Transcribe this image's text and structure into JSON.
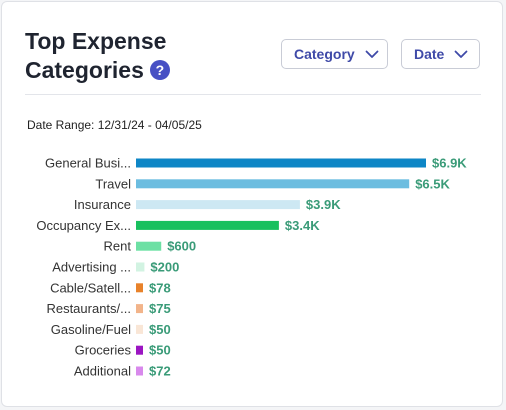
{
  "header": {
    "title_line1": "Top Expense",
    "title_line2": "Categories",
    "help_glyph": "?"
  },
  "filters": {
    "category_label": "Category",
    "date_label": "Date"
  },
  "date_range": "Date Range: 12/31/24 - 04/05/25",
  "colors": {
    "value_text": "#3a9b78",
    "accent": "#3f4aa8"
  },
  "chart_data": {
    "type": "bar",
    "orientation": "horizontal",
    "categories": [
      "General Busi...",
      "Travel",
      "Insurance",
      "Occupancy Ex...",
      "Rent",
      "Advertising ...",
      "Cable/Satell...",
      "Restaurants/...",
      "Gasoline/Fuel",
      "Groceries",
      "Additional"
    ],
    "values": [
      6900,
      6500,
      3900,
      3400,
      600,
      200,
      78,
      75,
      50,
      50,
      72
    ],
    "value_labels": [
      "$6.9K",
      "$6.5K",
      "$3.9K",
      "$3.4K",
      "$600",
      "$200",
      "$78",
      "$75",
      "$50",
      "$50",
      "$72"
    ],
    "colors": [
      "#0e86c6",
      "#6cbde0",
      "#cde8f3",
      "#18c05e",
      "#6de0a4",
      "#d2f3e2",
      "#e8822a",
      "#f2b48a",
      "#f9e6d6",
      "#9b15c2",
      "#d889ec"
    ],
    "grid": false,
    "legend": "none"
  }
}
